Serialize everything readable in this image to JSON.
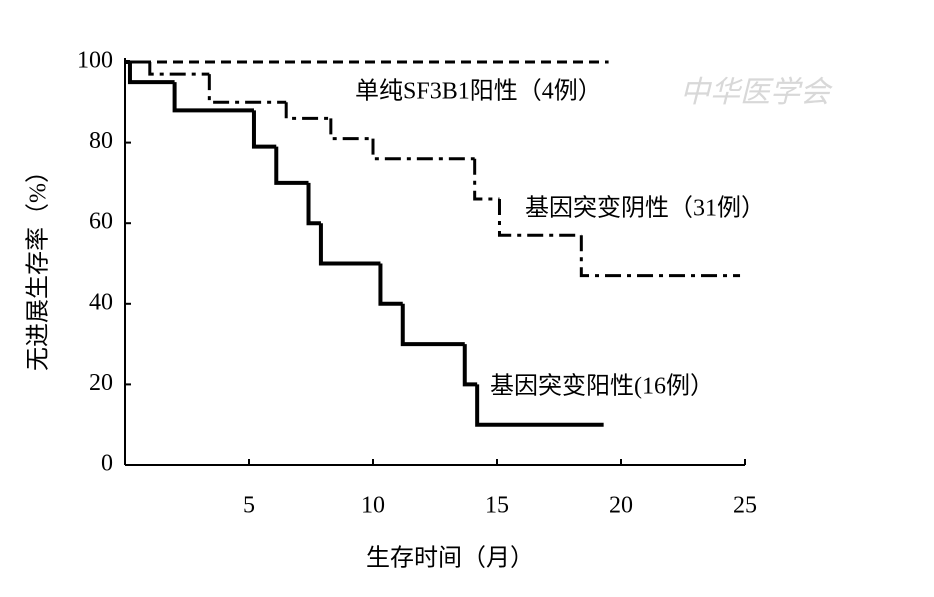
{
  "chart_data": {
    "type": "line",
    "x_label": "生存时间（月）",
    "y_label": "无进展生存率（%）",
    "watermark": "中华医学会",
    "annotations": [
      "单纯SF3B1阳性（4例）",
      "基因突变阴性（31例）",
      "基因突变阳性(16例）"
    ],
    "xlim": [
      0,
      25
    ],
    "xticks": [
      5,
      10,
      15,
      20,
      25
    ],
    "ylim": [
      0,
      100
    ],
    "yticks": [
      0,
      20,
      40,
      60,
      80,
      100
    ],
    "series": [
      {
        "name": "单纯SF3B1阳性（4例）",
        "color": "#000000",
        "line_style": "dashed",
        "x": [
          0,
          19.5
        ],
        "values": [
          100,
          100
        ]
      },
      {
        "name": "基因突变阴性（31例）",
        "color": "#000000",
        "line_style": "dashdot",
        "x": [
          0,
          1.0,
          3.4,
          6.5,
          8.3,
          10.0,
          14.1,
          15.1,
          18.4,
          24.8
        ],
        "values": [
          100,
          97,
          90,
          86,
          81,
          76,
          66,
          57,
          47,
          47
        ]
      },
      {
        "name": "基因突变阳性(16例）",
        "color": "#000000",
        "line_style": "solid",
        "x": [
          0,
          0.2,
          2.0,
          5.2,
          6.1,
          7.4,
          7.9,
          10.3,
          11.2,
          13.7,
          14.2,
          19.3
        ],
        "values": [
          100,
          95,
          88,
          79,
          70,
          60,
          50,
          40,
          30,
          20,
          10,
          10
        ]
      }
    ]
  }
}
